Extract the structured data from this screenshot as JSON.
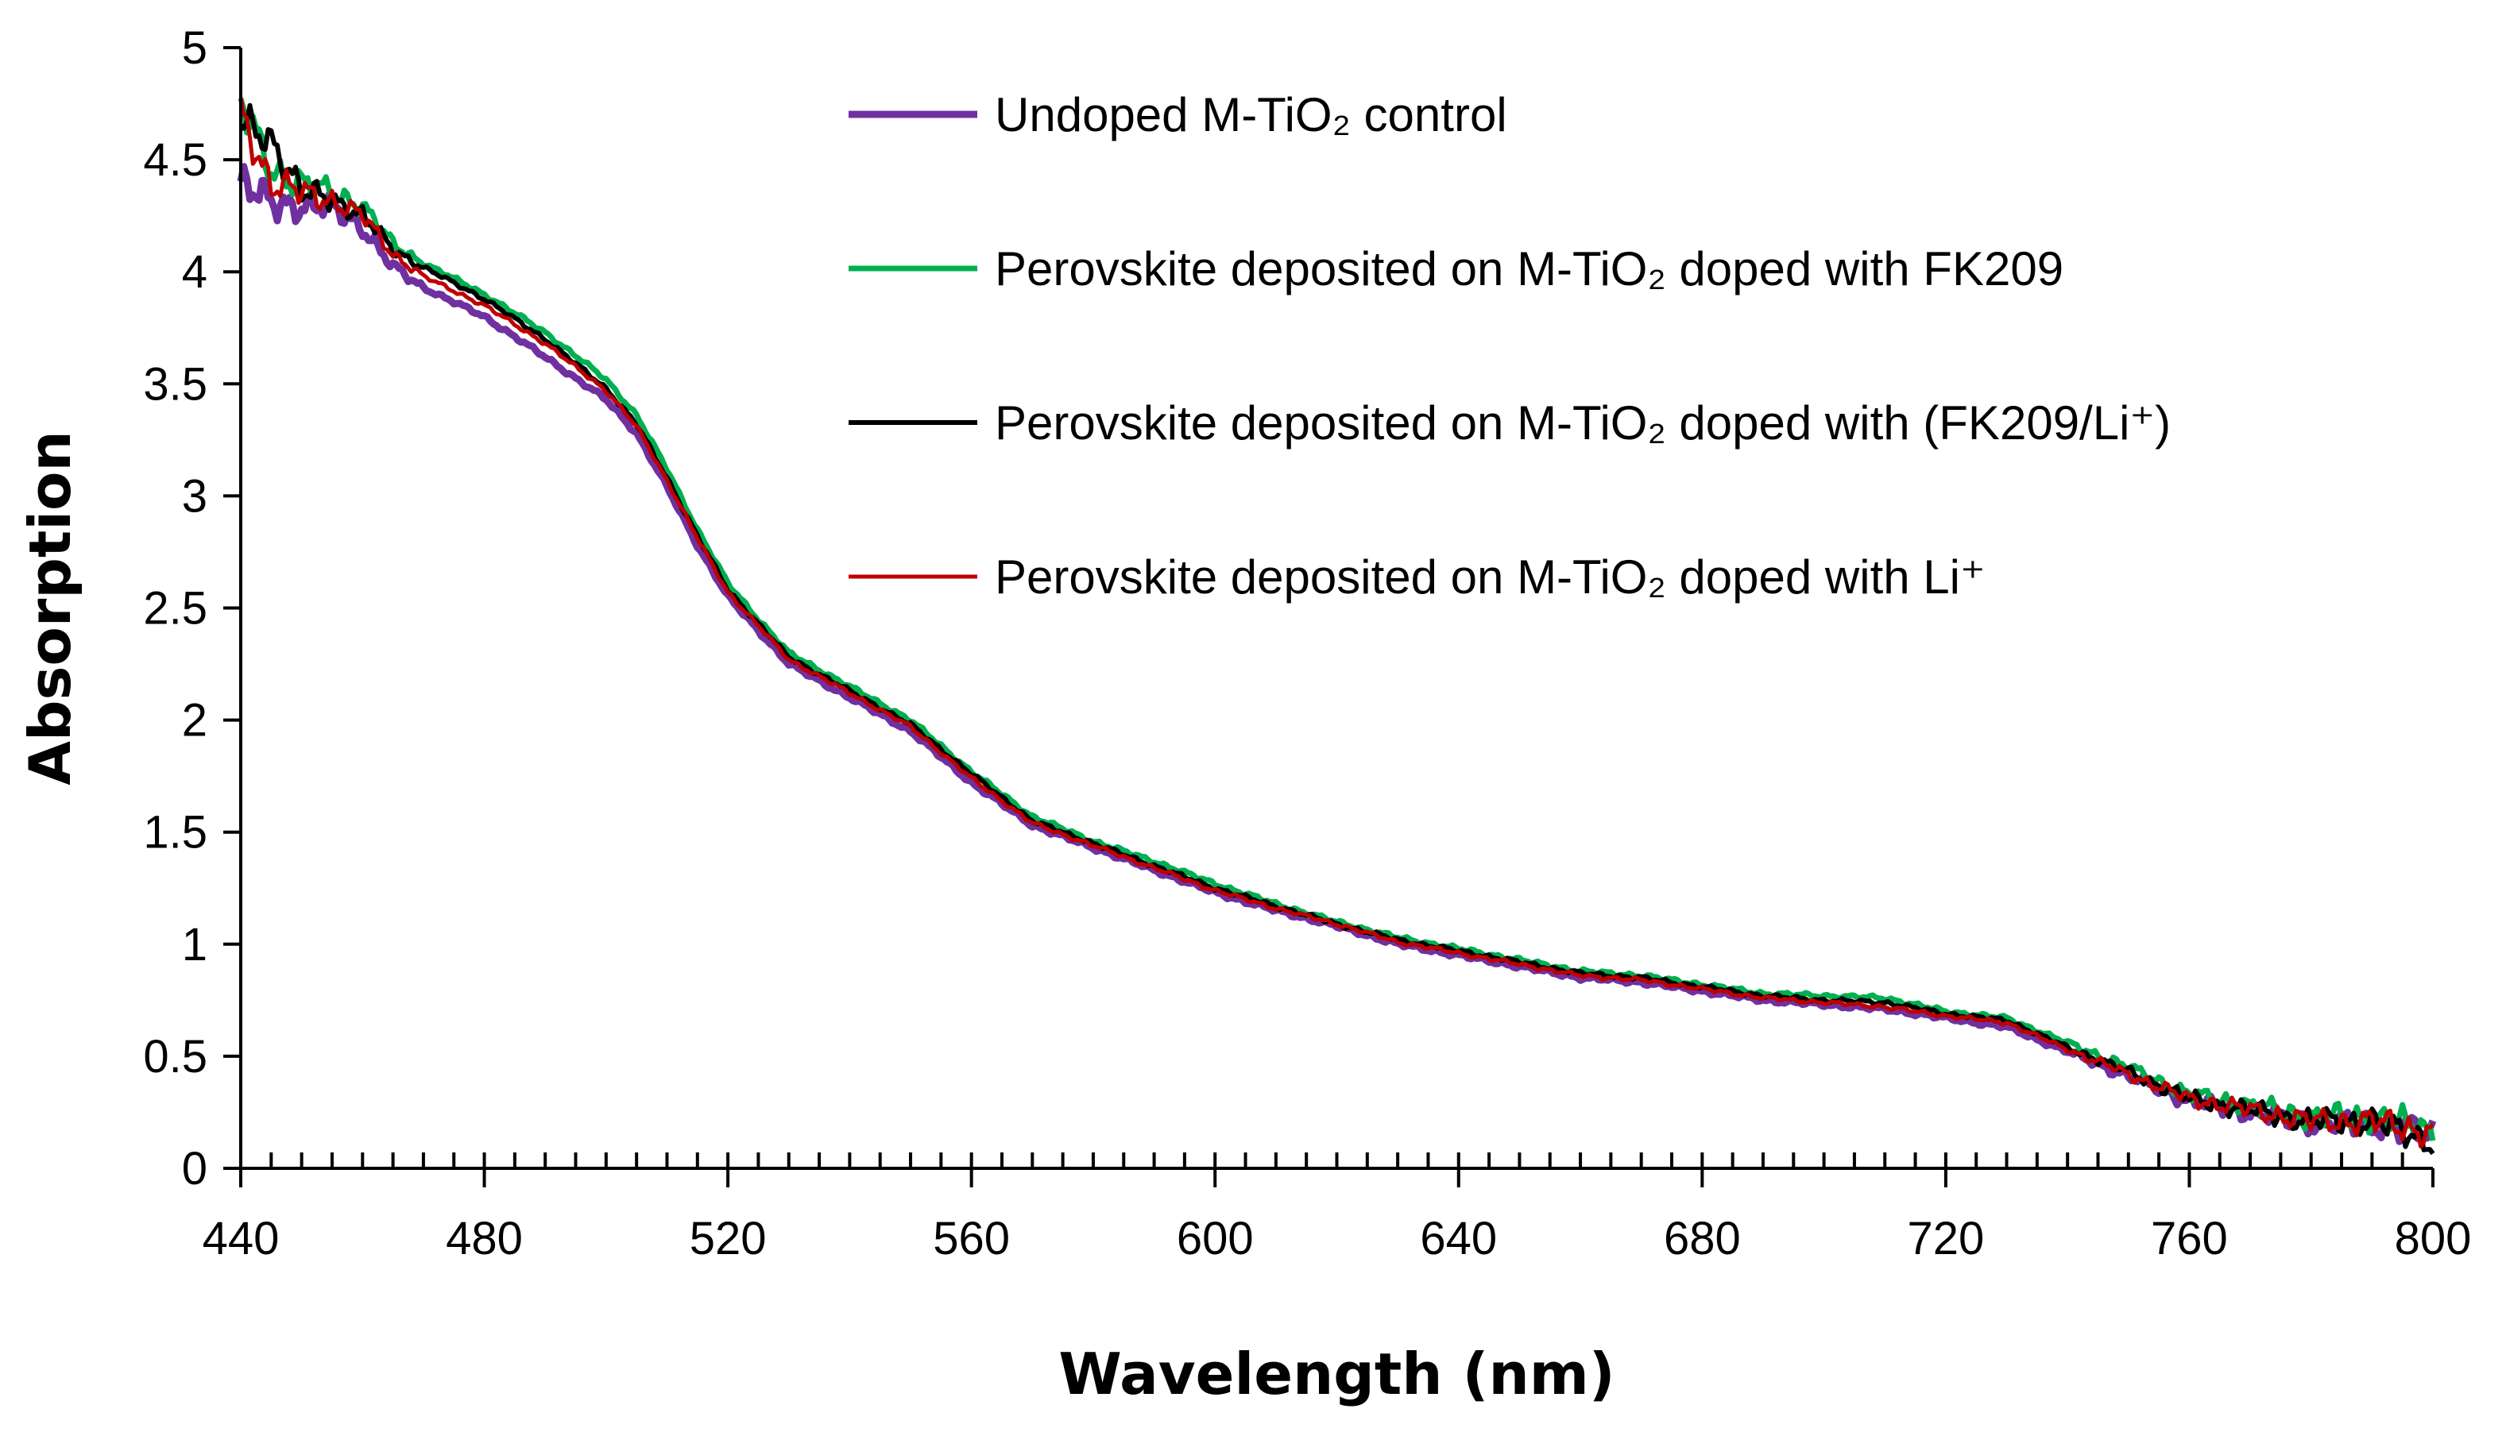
{
  "chart_data": {
    "type": "line",
    "title": "",
    "xlabel": "Wavelength (nm)",
    "ylabel": "Absorption",
    "xlim": [
      440,
      800
    ],
    "ylim": [
      0,
      5
    ],
    "x_ticks": [
      "440",
      "480",
      "520",
      "560",
      "600",
      "640",
      "680",
      "720",
      "760",
      "800"
    ],
    "y_ticks": [
      "0",
      "0.5",
      "1",
      "1.5",
      "2",
      "2.5",
      "3",
      "3.5",
      "4",
      "4.5",
      "5"
    ],
    "x_minor_step": 5,
    "grid": false,
    "legend_position": "top-right",
    "series": [
      {
        "name": "Undoped M-TiO₂ control",
        "color": "#7030a0",
        "x": [
          440,
          445,
          450,
          455,
          460,
          465,
          470,
          480,
          490,
          500,
          505,
          510,
          515,
          520,
          525,
          530,
          540,
          550,
          560,
          570,
          580,
          590,
          600,
          610,
          620,
          630,
          640,
          650,
          660,
          670,
          680,
          690,
          700,
          710,
          720,
          730,
          740,
          750,
          760,
          770,
          780,
          790,
          800
        ],
        "y": [
          4.4,
          4.3,
          4.3,
          4.28,
          4.2,
          4.02,
          3.93,
          3.8,
          3.62,
          3.43,
          3.28,
          3.04,
          2.78,
          2.55,
          2.4,
          2.25,
          2.1,
          1.95,
          1.72,
          1.53,
          1.43,
          1.33,
          1.23,
          1.15,
          1.08,
          1.0,
          0.95,
          0.9,
          0.85,
          0.83,
          0.79,
          0.75,
          0.73,
          0.71,
          0.67,
          0.63,
          0.52,
          0.41,
          0.3,
          0.25,
          0.2,
          0.2,
          0.15
        ]
      },
      {
        "name": "Perovskite deposited on M-TiO₂ doped with FK209",
        "color": "#00b050",
        "x": [
          440,
          445,
          450,
          455,
          460,
          465,
          470,
          480,
          490,
          500,
          505,
          510,
          515,
          520,
          525,
          530,
          540,
          550,
          560,
          570,
          580,
          590,
          600,
          610,
          620,
          630,
          640,
          650,
          660,
          670,
          680,
          690,
          700,
          710,
          720,
          730,
          740,
          750,
          760,
          770,
          780,
          790,
          800
        ],
        "y": [
          4.75,
          4.45,
          4.4,
          4.35,
          4.3,
          4.12,
          4.04,
          3.9,
          3.73,
          3.52,
          3.36,
          3.12,
          2.85,
          2.61,
          2.45,
          2.3,
          2.15,
          2.0,
          1.77,
          1.57,
          1.46,
          1.37,
          1.27,
          1.18,
          1.1,
          1.03,
          0.98,
          0.93,
          0.88,
          0.86,
          0.82,
          0.78,
          0.77,
          0.76,
          0.7,
          0.67,
          0.56,
          0.45,
          0.33,
          0.28,
          0.23,
          0.23,
          0.17
        ]
      },
      {
        "name": "Perovskite deposited on M-TiO₂ doped with (FK209/Li⁺)",
        "color": "#000000",
        "x": [
          440,
          445,
          450,
          455,
          460,
          465,
          470,
          480,
          490,
          500,
          505,
          510,
          515,
          520,
          525,
          530,
          540,
          550,
          560,
          570,
          580,
          590,
          600,
          610,
          620,
          630,
          640,
          650,
          660,
          670,
          680,
          690,
          700,
          710,
          720,
          730,
          740,
          750,
          760,
          770,
          780,
          790,
          800
        ],
        "y": [
          4.65,
          4.6,
          4.35,
          4.33,
          4.25,
          4.1,
          4.02,
          3.88,
          3.7,
          3.48,
          3.32,
          3.08,
          2.82,
          2.58,
          2.43,
          2.28,
          2.13,
          1.98,
          1.76,
          1.55,
          1.45,
          1.35,
          1.25,
          1.17,
          1.09,
          1.02,
          0.97,
          0.92,
          0.87,
          0.85,
          0.81,
          0.77,
          0.75,
          0.74,
          0.69,
          0.66,
          0.54,
          0.43,
          0.31,
          0.26,
          0.21,
          0.21,
          0.12
        ]
      },
      {
        "name": "Perovskite deposited on M-TiO₂ doped with Li⁺",
        "color": "#c00000",
        "x": [
          440,
          445,
          450,
          455,
          460,
          465,
          470,
          480,
          490,
          500,
          505,
          510,
          515,
          520,
          525,
          530,
          540,
          550,
          560,
          570,
          580,
          590,
          600,
          610,
          620,
          630,
          640,
          650,
          660,
          670,
          680,
          690,
          700,
          710,
          720,
          730,
          740,
          750,
          760,
          770,
          780,
          790,
          800
        ],
        "y": [
          4.7,
          4.4,
          4.35,
          4.32,
          4.25,
          4.08,
          3.98,
          3.85,
          3.68,
          3.47,
          3.31,
          3.07,
          2.81,
          2.57,
          2.42,
          2.27,
          2.12,
          1.97,
          1.74,
          1.54,
          1.44,
          1.34,
          1.24,
          1.16,
          1.09,
          1.01,
          0.96,
          0.91,
          0.86,
          0.84,
          0.8,
          0.76,
          0.74,
          0.72,
          0.68,
          0.65,
          0.53,
          0.42,
          0.31,
          0.26,
          0.21,
          0.21,
          0.16
        ]
      }
    ]
  }
}
